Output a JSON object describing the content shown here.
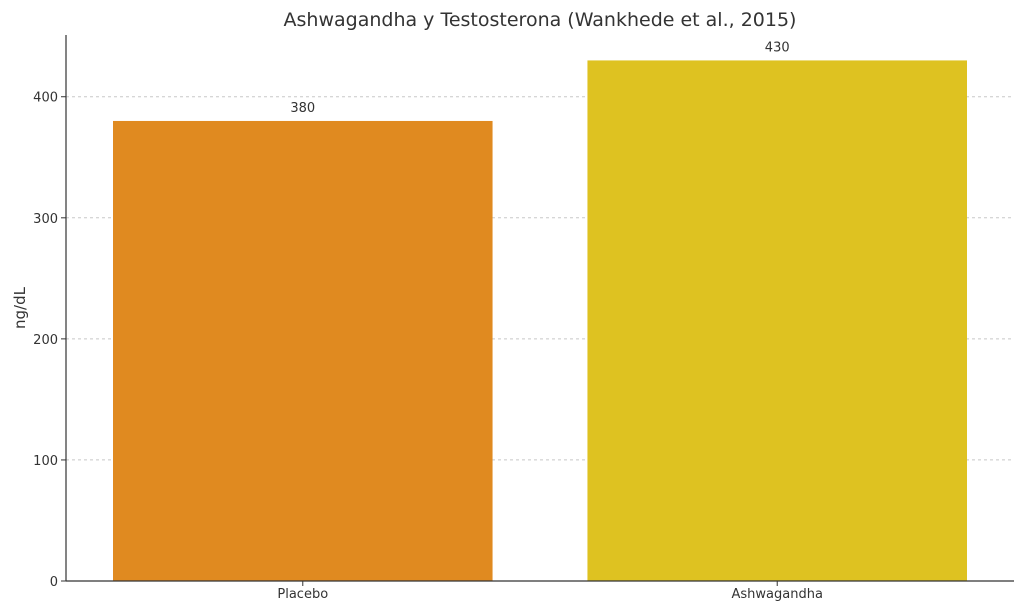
{
  "chart_data": {
    "type": "bar",
    "title": "Ashwagandha y Testosterona (Wankhede et al., 2015)",
    "xlabel": "",
    "ylabel": "ng/dL",
    "categories": [
      "Placebo",
      "Ashwagandha"
    ],
    "values": [
      380,
      430
    ],
    "data_labels": [
      "380",
      "430"
    ],
    "colors": [
      "#e08a20",
      "#dec221"
    ],
    "ylim": [
      0,
      451
    ],
    "yticks": [
      0,
      100,
      200,
      300,
      400
    ],
    "grid": true,
    "grid_axis": "y",
    "legend": "none"
  }
}
